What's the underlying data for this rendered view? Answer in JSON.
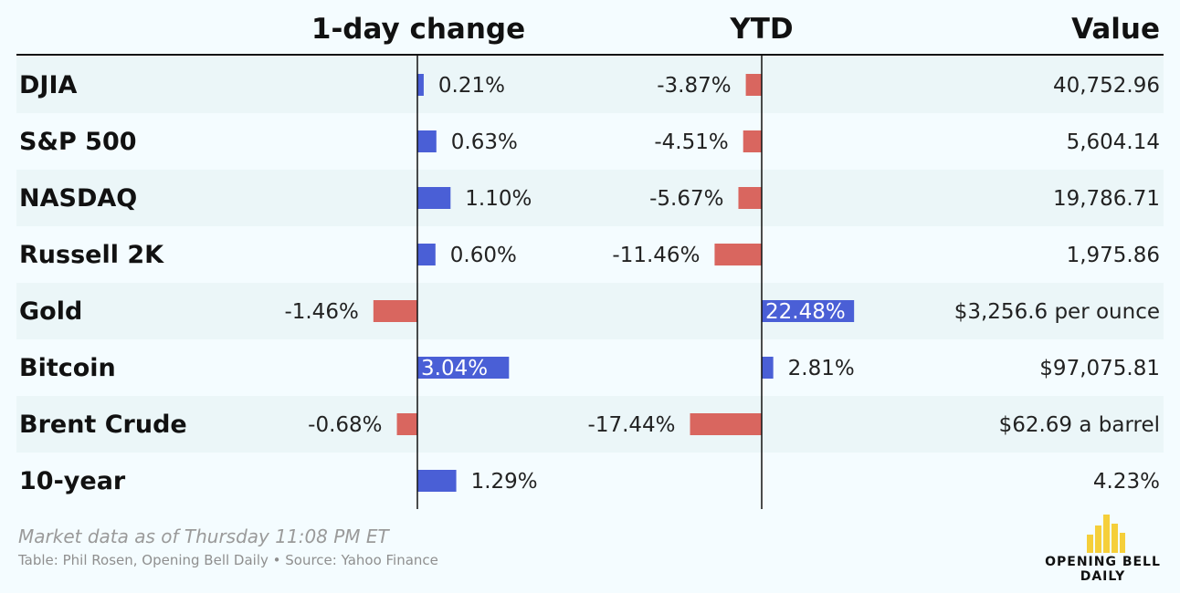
{
  "chart_data": {
    "type": "table",
    "columns": {
      "change_1d": "1-day change",
      "ytd": "YTD",
      "value": "Value"
    },
    "rows": [
      {
        "name": "DJIA",
        "change_1d": 0.21,
        "change_1d_label": "0.21%",
        "ytd": -3.87,
        "ytd_label": "-3.87%",
        "value": "40,752.96"
      },
      {
        "name": "S&P 500",
        "change_1d": 0.63,
        "change_1d_label": "0.63%",
        "ytd": -4.51,
        "ytd_label": "-4.51%",
        "value": "5,604.14"
      },
      {
        "name": "NASDAQ",
        "change_1d": 1.1,
        "change_1d_label": "1.10%",
        "ytd": -5.67,
        "ytd_label": "-5.67%",
        "value": "19,786.71"
      },
      {
        "name": "Russell 2K",
        "change_1d": 0.6,
        "change_1d_label": "0.60%",
        "ytd": -11.46,
        "ytd_label": "-11.46%",
        "value": "1,975.86"
      },
      {
        "name": "Gold",
        "change_1d": -1.46,
        "change_1d_label": "-1.46%",
        "ytd": 22.48,
        "ytd_label": "22.48%",
        "value": "$3,256.6 per ounce"
      },
      {
        "name": "Bitcoin",
        "change_1d": 3.04,
        "change_1d_label": "3.04%",
        "ytd": 2.81,
        "ytd_label": "2.81%",
        "value": "$97,075.81"
      },
      {
        "name": "Brent Crude",
        "change_1d": -0.68,
        "change_1d_label": "-0.68%",
        "ytd": -17.44,
        "ytd_label": "-17.44%",
        "value": "$62.69 a barrel"
      },
      {
        "name": "10-year",
        "change_1d": 1.29,
        "change_1d_label": "1.29%",
        "ytd": null,
        "ytd_label": "",
        "value": "4.23%"
      }
    ],
    "colors": {
      "positive": "#4a5fd6",
      "negative": "#d9665f",
      "row_shade": "#ebf6f8",
      "background": "#f4fcff"
    }
  },
  "footer": {
    "note": "Market data as of Thursday 11:08 PM ET",
    "source": "Table: Phil Rosen, Opening Bell Daily • Source: Yahoo Finance"
  },
  "logo": {
    "line1": "OPENING BELL",
    "line2": "DAILY",
    "color": "#f5cf3a"
  }
}
